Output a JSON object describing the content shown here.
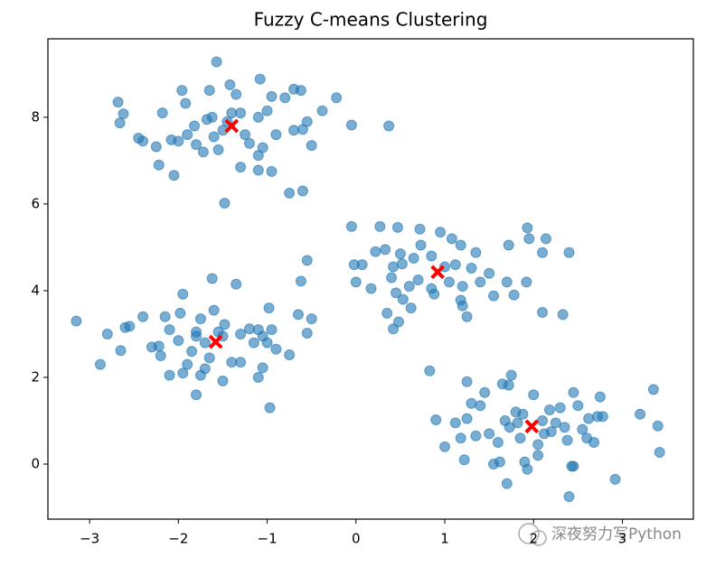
{
  "chart_data": {
    "type": "scatter",
    "title": "Fuzzy C-means Clustering",
    "xlim": [
      -3.47,
      3.8
    ],
    "ylim": [
      -1.27,
      9.81
    ],
    "xticks": [
      {
        "value": -3,
        "label": "−3"
      },
      {
        "value": -2,
        "label": "−2"
      },
      {
        "value": -1,
        "label": "−1"
      },
      0,
      1,
      2,
      3
    ],
    "yticks": [
      0,
      2,
      4,
      6,
      8
    ],
    "annotation": "深夜努力写Python",
    "series": [
      {
        "color": "#1f77b4",
        "opacity": 0.6,
        "marker": "circle",
        "x": [
          -1.57,
          -2.68,
          -2.62,
          -2.66,
          -2.45,
          -2.4,
          -2.25,
          -2.22,
          -2.05,
          -2.08,
          -2.0,
          -1.96,
          -1.92,
          -1.82,
          -1.8,
          -1.72,
          -1.68,
          -1.6,
          -1.55,
          -1.5,
          -1.45,
          -1.4,
          -1.35,
          -1.3,
          -1.25,
          -1.2,
          -1.1,
          -1.05,
          -1.0,
          -0.95,
          -0.9,
          -0.8,
          -0.7,
          -0.62,
          -0.55,
          -0.5,
          -0.7,
          -0.6,
          -0.75,
          -0.6,
          -0.95,
          -1.1,
          -1.1,
          -1.3,
          -1.48,
          -1.65,
          -1.42,
          -1.08,
          -0.38,
          -0.22,
          -0.05,
          0.37,
          -2.18,
          -1.9,
          -1.62,
          -0.05,
          0.27,
          0.47,
          0.72,
          0.95,
          1.08,
          1.18,
          0.73,
          0.5,
          0.33,
          0.22,
          -0.02,
          0.07,
          0.42,
          0.52,
          0.65,
          0.85,
          1.0,
          1.12,
          1.3,
          1.35,
          1.5,
          1.4,
          1.2,
          1.05,
          0.85,
          0.7,
          0.6,
          0.45,
          0.53,
          0.48,
          0.42,
          0.35,
          0.17,
          0.0,
          0.62,
          0.88,
          1.18,
          1.25,
          1.2,
          1.55,
          1.78,
          1.72,
          1.93,
          1.95,
          2.14,
          2.1,
          2.4,
          2.1,
          2.33,
          1.7,
          1.92,
          0.4,
          -3.15,
          -2.8,
          -2.65,
          -2.6,
          -2.55,
          -2.4,
          -2.88,
          -2.22,
          -2.2,
          -2.15,
          -2.1,
          -2.1,
          -2.0,
          -1.95,
          -1.95,
          -1.9,
          -1.85,
          -1.8,
          -1.75,
          -1.75,
          -1.8,
          -1.7,
          -1.65,
          -1.62,
          -1.6,
          -1.55,
          -1.5,
          -1.48,
          -1.5,
          -1.4,
          -1.35,
          -1.3,
          -1.2,
          -1.15,
          -1.1,
          -1.05,
          -1.0,
          -0.98,
          -0.95,
          -1.05,
          -1.1,
          -1.3,
          -0.9,
          -0.75,
          -0.65,
          -0.5,
          -0.55,
          -0.62,
          -0.55,
          -0.97,
          -1.8,
          -1.7,
          -2.3,
          -1.98,
          0.83,
          0.9,
          1.0,
          1.12,
          1.18,
          1.25,
          1.25,
          1.3,
          1.22,
          1.35,
          1.4,
          1.45,
          1.5,
          1.55,
          1.62,
          1.6,
          1.65,
          1.72,
          1.75,
          1.68,
          1.73,
          1.7,
          1.82,
          1.85,
          1.9,
          1.93,
          1.88,
          2.0,
          2.05,
          2.05,
          2.1,
          2.12,
          2.18,
          2.25,
          2.3,
          2.35,
          2.38,
          2.4,
          2.45,
          2.5,
          2.55,
          2.6,
          2.62,
          2.68,
          2.72,
          2.75,
          2.78,
          2.45,
          2.43,
          2.92,
          3.2,
          3.35,
          3.4,
          3.42,
          2.2,
          1.8
        ],
        "y": [
          9.28,
          8.35,
          8.08,
          7.87,
          7.52,
          7.45,
          7.32,
          6.9,
          6.66,
          7.48,
          7.45,
          8.62,
          8.32,
          7.8,
          7.37,
          7.2,
          7.95,
          7.55,
          7.25,
          7.7,
          7.9,
          8.1,
          8.53,
          8.1,
          7.6,
          7.4,
          8.0,
          7.3,
          8.15,
          8.48,
          7.6,
          8.45,
          8.65,
          8.62,
          7.9,
          7.35,
          7.7,
          7.72,
          6.25,
          6.3,
          6.75,
          6.78,
          7.12,
          6.85,
          6.02,
          8.62,
          8.75,
          8.88,
          8.15,
          8.45,
          7.82,
          7.8,
          8.1,
          7.6,
          8.0,
          5.48,
          5.48,
          5.46,
          5.42,
          5.35,
          5.2,
          5.05,
          5.05,
          4.85,
          4.95,
          4.9,
          4.6,
          4.6,
          4.55,
          4.62,
          4.75,
          4.8,
          4.55,
          4.6,
          4.52,
          4.88,
          4.4,
          4.2,
          4.1,
          4.2,
          4.05,
          4.25,
          4.1,
          3.95,
          3.8,
          3.28,
          3.12,
          3.48,
          4.05,
          4.2,
          3.6,
          3.92,
          3.78,
          3.4,
          3.65,
          3.88,
          3.9,
          5.05,
          5.45,
          5.2,
          5.2,
          4.88,
          4.88,
          3.5,
          3.45,
          4.2,
          4.2,
          4.3,
          3.3,
          3.0,
          2.62,
          3.15,
          3.18,
          3.4,
          2.3,
          2.72,
          2.5,
          3.4,
          3.1,
          2.05,
          2.85,
          3.92,
          2.1,
          2.3,
          2.6,
          3.05,
          3.35,
          2.05,
          1.6,
          2.8,
          2.45,
          4.28,
          3.55,
          3.05,
          2.95,
          3.22,
          1.92,
          2.35,
          4.15,
          3.0,
          3.12,
          2.8,
          3.1,
          2.95,
          2.8,
          3.6,
          3.1,
          2.22,
          2.0,
          2.35,
          2.65,
          2.52,
          3.45,
          3.35,
          3.02,
          4.22,
          4.7,
          1.3,
          2.95,
          2.2,
          2.7,
          3.48,
          2.15,
          1.02,
          0.4,
          0.95,
          0.6,
          1.9,
          1.05,
          1.4,
          0.1,
          0.65,
          1.35,
          1.65,
          0.7,
          0.0,
          0.05,
          0.5,
          1.85,
          1.82,
          2.05,
          1.0,
          0.85,
          -0.45,
          0.95,
          0.6,
          0.05,
          -0.12,
          1.15,
          1.6,
          0.45,
          0.2,
          1.0,
          0.7,
          1.25,
          0.95,
          1.3,
          0.85,
          0.55,
          -0.75,
          1.65,
          1.35,
          0.8,
          0.6,
          1.05,
          0.5,
          1.1,
          1.55,
          1.1,
          -0.05,
          -0.05,
          -0.35,
          1.15,
          1.72,
          0.88,
          0.27,
          0.75,
          1.2
        ]
      },
      {
        "color": "#ff0000",
        "opacity": 1,
        "marker": "x",
        "x": [
          -1.4,
          0.92,
          -1.58,
          1.98
        ],
        "y": [
          7.8,
          4.43,
          2.82,
          0.87
        ]
      }
    ]
  }
}
